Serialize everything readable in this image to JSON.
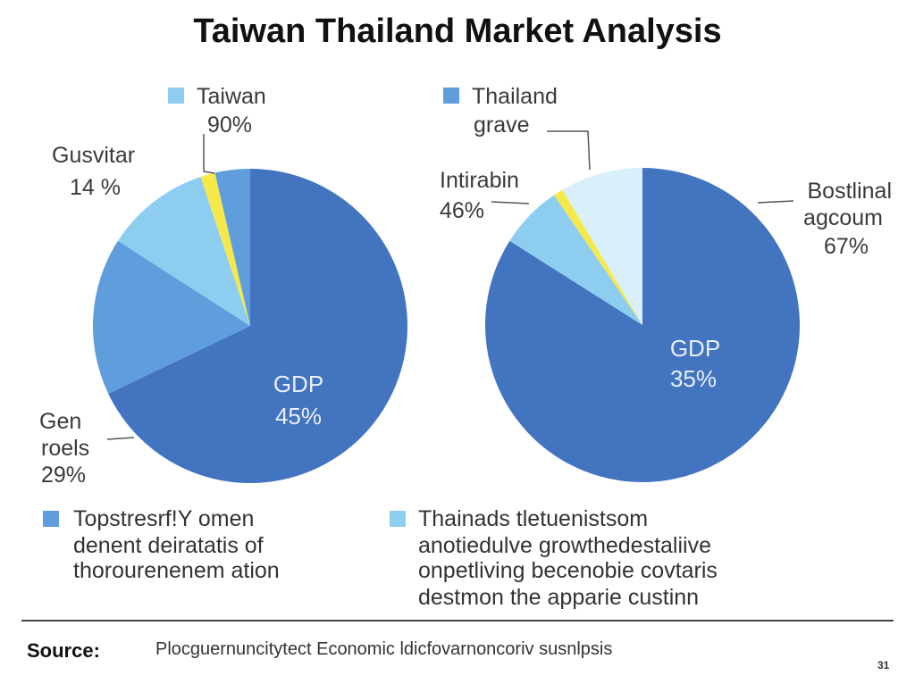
{
  "title": "Taiwan Thailand Market Analysis",
  "colors": {
    "dark_blue": "#4274c0",
    "mid_blue": "#5f9ddd",
    "light_blue": "#8dcdf0",
    "pale_blue": "#d9f0fa",
    "yellow": "#f7e84a"
  },
  "chart_data": [
    {
      "type": "pie",
      "slices": [
        {
          "label": "GDP",
          "value": "45%",
          "share": 0.679,
          "color": "dark_blue"
        },
        {
          "label": "Gen roels",
          "value": "29%",
          "share": 0.162,
          "color": "mid_blue"
        },
        {
          "label": "Gusvitar",
          "value": "14 %",
          "share": 0.108,
          "color": "light_blue"
        },
        {
          "label": "",
          "value": "",
          "share": 0.015,
          "color": "yellow"
        },
        {
          "label": "Taiwan",
          "value": "90%",
          "share": 0.036,
          "color": "mid_blue"
        }
      ],
      "callouts": {
        "top": {
          "name": "Taiwan",
          "value": "90%"
        },
        "left": {
          "name": "Gusvitar",
          "value": "14 %"
        },
        "bottom_left": {
          "name_line1": "Gen",
          "name_line2": "roels",
          "value": "29%"
        },
        "center": {
          "name": "GDP",
          "value": "45%"
        }
      }
    },
    {
      "type": "pie",
      "slices": [
        {
          "label": "GDP",
          "value": "35%",
          "share": 0.84,
          "color": "dark_blue"
        },
        {
          "label": "Intirabin",
          "value": "46%",
          "share": 0.065,
          "color": "light_blue"
        },
        {
          "label": "",
          "value": "",
          "share": 0.01,
          "color": "yellow"
        },
        {
          "label": "Thailand grave",
          "value": "",
          "share": 0.085,
          "color": "pale_blue"
        }
      ],
      "callouts": {
        "top": {
          "name_line1": "Thailand",
          "name_line2": "grave"
        },
        "left": {
          "name": "Intirabin",
          "value": "46%"
        },
        "right": {
          "name_line1": "Bostlinal",
          "name_line2": "agcoum",
          "value": "67%"
        },
        "center": {
          "name": "GDP",
          "value": "35%"
        }
      }
    }
  ],
  "legend": [
    {
      "color": "mid_blue",
      "lines": [
        "Topstresrf!Y omen",
        "denent deiratatis of",
        "thorourenenem ation"
      ]
    },
    {
      "color": "light_blue",
      "lines": [
        "Thainads tletuenistsom",
        "anotiedulve growthedestaliive",
        "onpetliving becenobie covtaris",
        "destmon the apparie custinn"
      ]
    }
  ],
  "footer": {
    "source_label": "Source:",
    "source_text": "Plocguernuncitytect Economic ldicfovarnoncoriv susnlpsis",
    "page_number": "31"
  }
}
